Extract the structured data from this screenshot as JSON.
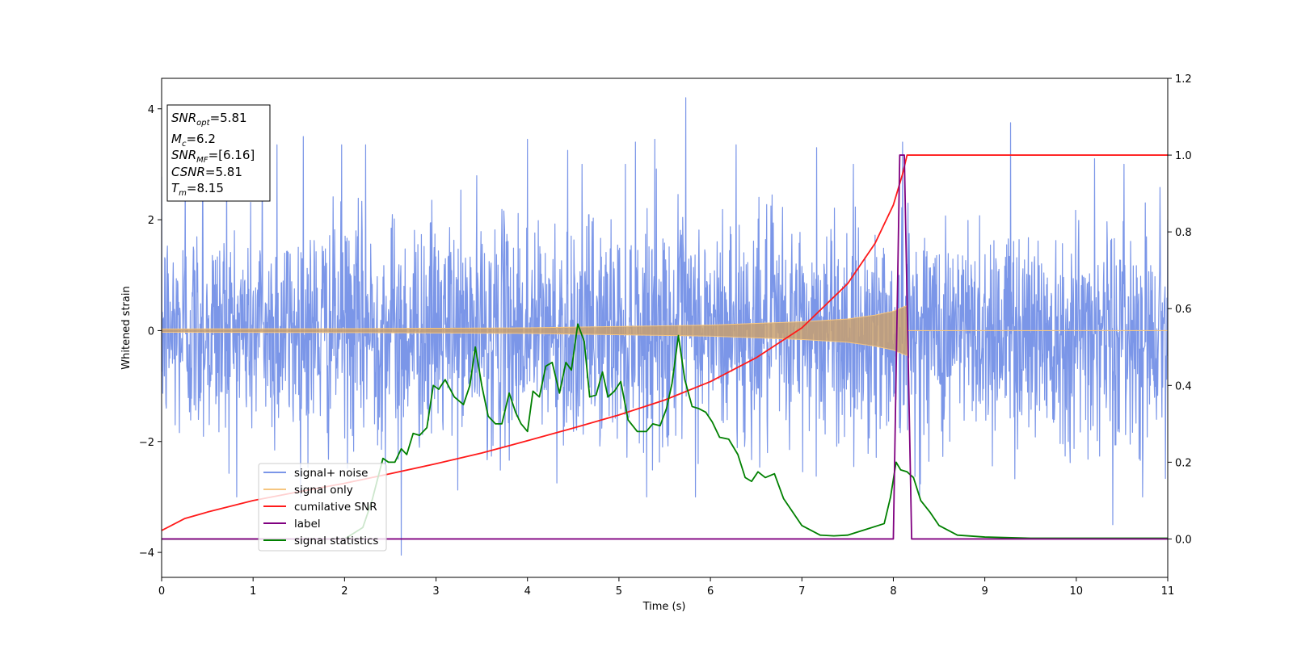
{
  "chart_data": {
    "type": "line",
    "title": "",
    "xlabel": "Time (s)",
    "ylabel": "Whitened strain",
    "y2label": "",
    "xlim": [
      0,
      11
    ],
    "ylim": [
      -4.45,
      4.55
    ],
    "y2lim": [
      -0.1,
      1.2
    ],
    "xticks": [
      "0",
      "1",
      "2",
      "3",
      "4",
      "5",
      "6",
      "7",
      "8",
      "9",
      "10",
      "11"
    ],
    "yticks": [
      "4",
      "2",
      "0",
      "−2",
      "−4"
    ],
    "y2ticks": [
      "1.2",
      "1.0",
      "0.8",
      "0.6",
      "0.4",
      "0.2",
      "0.0"
    ],
    "grid": false,
    "legend_position": "lower-left",
    "annotation": {
      "snr_opt": {
        "sym": "SNR",
        "sub": "opt",
        "value": "=5.81"
      },
      "mc": {
        "sym": "M",
        "sub": "c",
        "value": "=6.2"
      },
      "snr_mf": {
        "sym": "SNR",
        "sub": "MF",
        "value": "=[6.16]"
      },
      "csnr": {
        "sym": "CSNR",
        "value": "=5.81"
      },
      "tm": {
        "sym": "T",
        "sub": "m",
        "value": "=8.15"
      }
    },
    "series": [
      {
        "name": "signal+ noise",
        "axis": "left",
        "color": "#7b96e8",
        "description_noise_sigma": 1.0,
        "x": [
          0.26,
          0.45,
          0.71,
          1.1,
          1.26,
          1.55,
          1.97,
          2.23,
          2.62,
          4.0,
          4.44,
          5.18,
          5.39,
          5.73,
          6.28,
          7.16,
          8.1,
          9.28,
          10.2,
          10.4,
          11.0
        ],
        "y": [
          2.8,
          3.5,
          3.2,
          3.2,
          3.35,
          3.5,
          3.35,
          3.35,
          -4.05,
          3.45,
          3.25,
          3.4,
          3.45,
          4.2,
          3.35,
          3.3,
          3.4,
          3.75,
          3.1,
          -3.5,
          2.0
        ]
      },
      {
        "name": "signal only",
        "axis": "left",
        "color": "#f6c680",
        "x": [
          0,
          2,
          4,
          6,
          7,
          7.5,
          7.8,
          8.0,
          8.1,
          8.15,
          8.16,
          11
        ],
        "y": [
          0.03,
          0.035,
          0.05,
          0.1,
          0.16,
          0.21,
          0.28,
          0.35,
          0.42,
          0.45,
          0.0,
          0.0
        ]
      },
      {
        "name": "cumilative SNR",
        "axis": "right",
        "color": "#ff1a1a",
        "x": [
          0,
          0.25,
          0.5,
          1,
          1.5,
          2,
          2.5,
          3,
          3.5,
          4,
          4.5,
          5,
          5.5,
          6,
          6.5,
          7,
          7.5,
          7.8,
          8.0,
          8.1,
          8.15,
          11
        ],
        "y": [
          0.022,
          0.053,
          0.07,
          0.1,
          0.123,
          0.145,
          0.17,
          0.196,
          0.224,
          0.256,
          0.289,
          0.323,
          0.362,
          0.41,
          0.472,
          0.55,
          0.665,
          0.77,
          0.87,
          0.95,
          1.0,
          1.0
        ]
      },
      {
        "name": "label",
        "axis": "right",
        "color": "#800080",
        "x": [
          0,
          8.0,
          8.07,
          8.12,
          8.2,
          11
        ],
        "y": [
          0,
          0,
          1.0,
          1.0,
          0,
          0
        ]
      },
      {
        "name": "signal statistics",
        "axis": "right",
        "color": "#008000",
        "x": [
          0,
          0.5,
          1.0,
          1.5,
          2.0,
          2.2,
          2.3,
          2.42,
          2.48,
          2.55,
          2.62,
          2.68,
          2.75,
          2.82,
          2.9,
          2.97,
          3.03,
          3.1,
          3.2,
          3.3,
          3.37,
          3.43,
          3.5,
          3.57,
          3.65,
          3.72,
          3.8,
          3.87,
          3.93,
          4.0,
          4.06,
          4.13,
          4.2,
          4.27,
          4.35,
          4.42,
          4.48,
          4.55,
          4.62,
          4.68,
          4.75,
          4.82,
          4.88,
          4.95,
          5.02,
          5.1,
          5.2,
          5.3,
          5.37,
          5.45,
          5.52,
          5.58,
          5.65,
          5.72,
          5.8,
          5.87,
          5.95,
          6.02,
          6.1,
          6.2,
          6.3,
          6.38,
          6.45,
          6.52,
          6.6,
          6.7,
          6.8,
          7.0,
          7.2,
          7.35,
          7.5,
          7.7,
          7.9,
          7.97,
          8.03,
          8.08,
          8.15,
          8.22,
          8.3,
          8.4,
          8.5,
          8.7,
          9.0,
          9.5,
          10.0,
          10.5,
          11.0
        ],
        "y": [
          0.0,
          0.0,
          0.0,
          0.0,
          0.0,
          0.03,
          0.1,
          0.21,
          0.2,
          0.2,
          0.235,
          0.22,
          0.275,
          0.27,
          0.29,
          0.4,
          0.39,
          0.415,
          0.37,
          0.35,
          0.4,
          0.5,
          0.4,
          0.32,
          0.3,
          0.3,
          0.38,
          0.33,
          0.3,
          0.28,
          0.385,
          0.37,
          0.45,
          0.46,
          0.38,
          0.46,
          0.44,
          0.56,
          0.515,
          0.37,
          0.375,
          0.435,
          0.37,
          0.385,
          0.41,
          0.31,
          0.28,
          0.28,
          0.3,
          0.295,
          0.34,
          0.405,
          0.53,
          0.415,
          0.345,
          0.34,
          0.33,
          0.305,
          0.265,
          0.26,
          0.22,
          0.16,
          0.15,
          0.175,
          0.16,
          0.17,
          0.105,
          0.035,
          0.01,
          0.008,
          0.01,
          0.025,
          0.04,
          0.11,
          0.2,
          0.18,
          0.175,
          0.16,
          0.1,
          0.07,
          0.035,
          0.01,
          0.005,
          0.002,
          0.002,
          0.002,
          0.002
        ]
      }
    ]
  }
}
